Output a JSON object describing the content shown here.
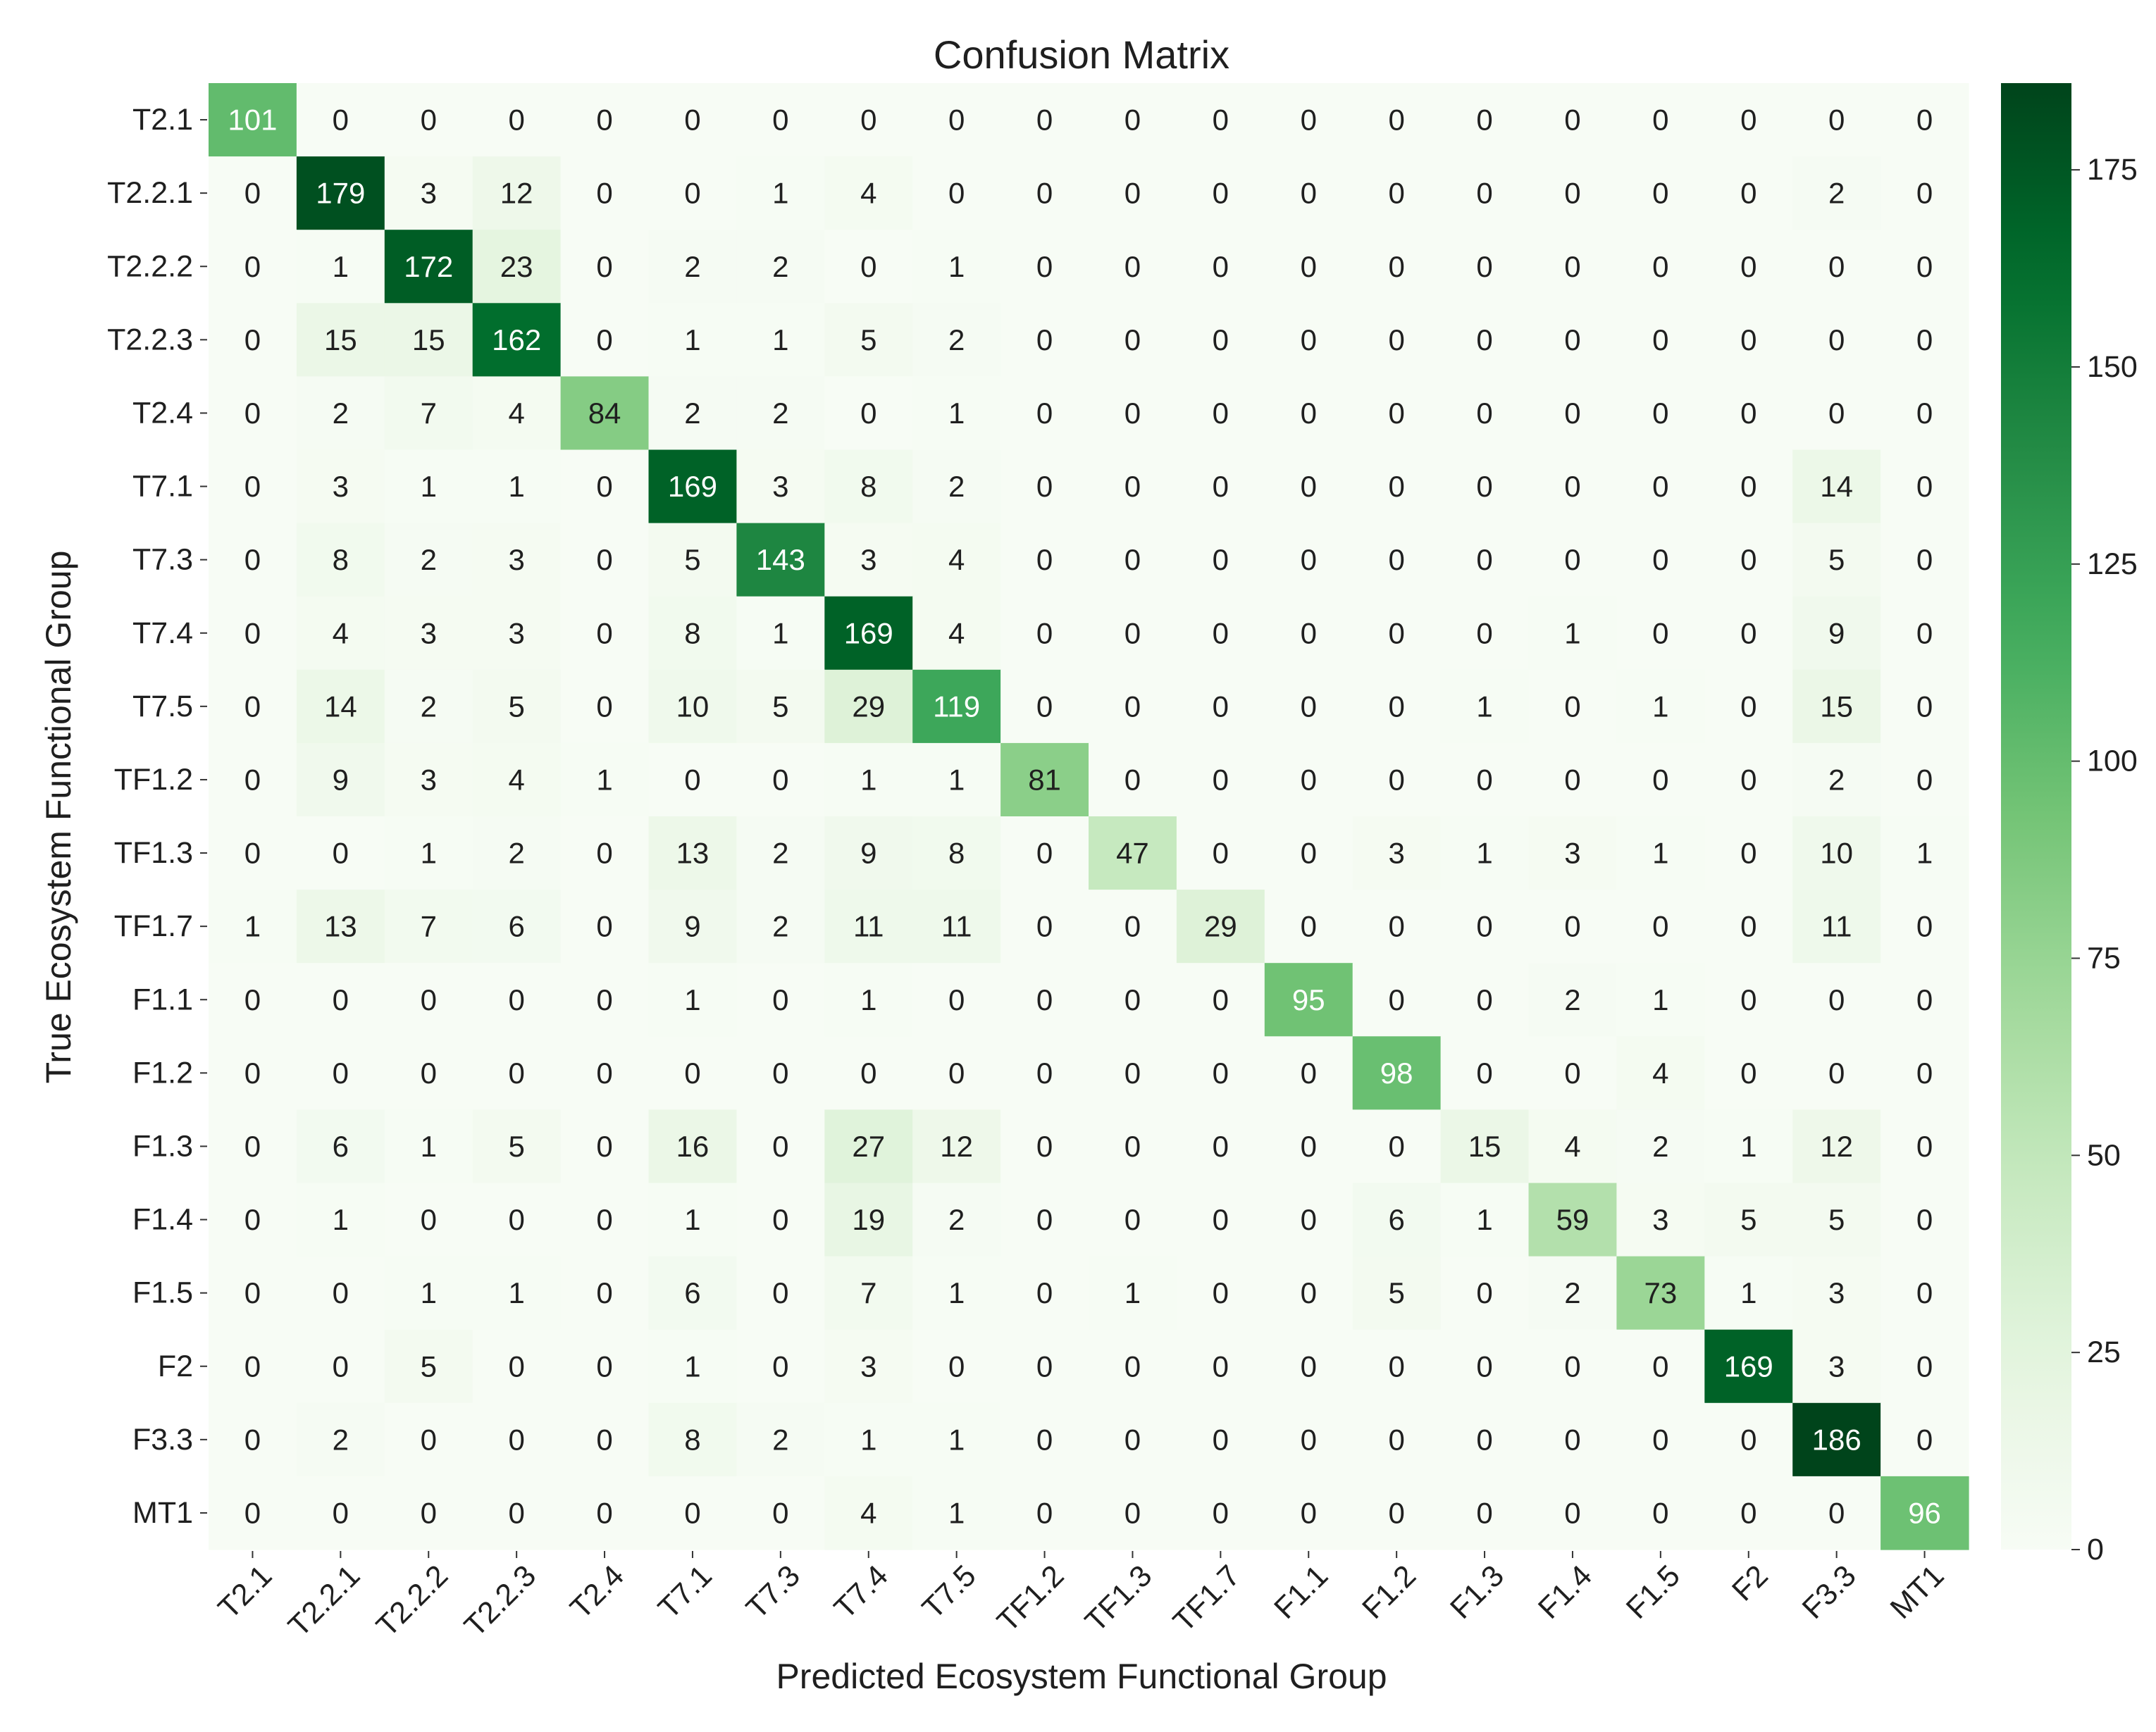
{
  "chart_data": {
    "type": "heatmap",
    "title": "Confusion Matrix",
    "xlabel": "Predicted Ecosystem Functional Group",
    "ylabel": "True Ecosystem Functional Group",
    "x_categories": [
      "T2.1",
      "T2.2.1",
      "T2.2.2",
      "T2.2.3",
      "T2.4",
      "T7.1",
      "T7.3",
      "T7.4",
      "T7.5",
      "TF1.2",
      "TF1.3",
      "TF1.7",
      "F1.1",
      "F1.2",
      "F1.3",
      "F1.4",
      "F1.5",
      "F2",
      "F3.3",
      "MT1"
    ],
    "y_categories": [
      "T2.1",
      "T2.2.1",
      "T2.2.2",
      "T2.2.3",
      "T2.4",
      "T7.1",
      "T7.3",
      "T7.4",
      "T7.5",
      "TF1.2",
      "TF1.3",
      "TF1.7",
      "F1.1",
      "F1.2",
      "F1.3",
      "F1.4",
      "F1.5",
      "F2",
      "F3.3",
      "MT1"
    ],
    "matrix": [
      [
        101,
        0,
        0,
        0,
        0,
        0,
        0,
        0,
        0,
        0,
        0,
        0,
        0,
        0,
        0,
        0,
        0,
        0,
        0,
        0
      ],
      [
        0,
        179,
        3,
        12,
        0,
        0,
        1,
        4,
        0,
        0,
        0,
        0,
        0,
        0,
        0,
        0,
        0,
        0,
        2,
        0
      ],
      [
        0,
        1,
        172,
        23,
        0,
        2,
        2,
        0,
        1,
        0,
        0,
        0,
        0,
        0,
        0,
        0,
        0,
        0,
        0,
        0
      ],
      [
        0,
        15,
        15,
        162,
        0,
        1,
        1,
        5,
        2,
        0,
        0,
        0,
        0,
        0,
        0,
        0,
        0,
        0,
        0,
        0
      ],
      [
        0,
        2,
        7,
        4,
        84,
        2,
        2,
        0,
        1,
        0,
        0,
        0,
        0,
        0,
        0,
        0,
        0,
        0,
        0,
        0
      ],
      [
        0,
        3,
        1,
        1,
        0,
        169,
        3,
        8,
        2,
        0,
        0,
        0,
        0,
        0,
        0,
        0,
        0,
        0,
        14,
        0
      ],
      [
        0,
        8,
        2,
        3,
        0,
        5,
        143,
        3,
        4,
        0,
        0,
        0,
        0,
        0,
        0,
        0,
        0,
        0,
        5,
        0
      ],
      [
        0,
        4,
        3,
        3,
        0,
        8,
        1,
        169,
        4,
        0,
        0,
        0,
        0,
        0,
        0,
        1,
        0,
        0,
        9,
        0
      ],
      [
        0,
        14,
        2,
        5,
        0,
        10,
        5,
        29,
        119,
        0,
        0,
        0,
        0,
        0,
        1,
        0,
        1,
        0,
        15,
        0
      ],
      [
        0,
        9,
        3,
        4,
        1,
        0,
        0,
        1,
        1,
        81,
        0,
        0,
        0,
        0,
        0,
        0,
        0,
        0,
        2,
        0
      ],
      [
        0,
        0,
        1,
        2,
        0,
        13,
        2,
        9,
        8,
        0,
        47,
        0,
        0,
        3,
        1,
        3,
        1,
        0,
        10,
        1
      ],
      [
        1,
        13,
        7,
        6,
        0,
        9,
        2,
        11,
        11,
        0,
        0,
        29,
        0,
        0,
        0,
        0,
        0,
        0,
        11,
        0
      ],
      [
        0,
        0,
        0,
        0,
        0,
        1,
        0,
        1,
        0,
        0,
        0,
        0,
        95,
        0,
        0,
        2,
        1,
        0,
        0,
        0
      ],
      [
        0,
        0,
        0,
        0,
        0,
        0,
        0,
        0,
        0,
        0,
        0,
        0,
        0,
        98,
        0,
        0,
        4,
        0,
        0,
        0
      ],
      [
        0,
        6,
        1,
        5,
        0,
        16,
        0,
        27,
        12,
        0,
        0,
        0,
        0,
        0,
        15,
        4,
        2,
        1,
        12,
        0
      ],
      [
        0,
        1,
        0,
        0,
        0,
        1,
        0,
        19,
        2,
        0,
        0,
        0,
        0,
        6,
        1,
        59,
        3,
        5,
        5,
        0
      ],
      [
        0,
        0,
        1,
        1,
        0,
        6,
        0,
        7,
        1,
        0,
        1,
        0,
        0,
        5,
        0,
        2,
        73,
        1,
        3,
        0
      ],
      [
        0,
        0,
        5,
        0,
        0,
        1,
        0,
        3,
        0,
        0,
        0,
        0,
        0,
        0,
        0,
        0,
        0,
        169,
        3,
        0
      ],
      [
        0,
        2,
        0,
        0,
        0,
        8,
        2,
        1,
        1,
        0,
        0,
        0,
        0,
        0,
        0,
        0,
        0,
        0,
        186,
        0
      ],
      [
        0,
        0,
        0,
        0,
        0,
        0,
        0,
        4,
        1,
        0,
        0,
        0,
        0,
        0,
        0,
        0,
        0,
        0,
        0,
        96
      ]
    ],
    "colorbar": {
      "colormap": "Greens",
      "range": [
        0,
        186
      ],
      "ticks": [
        0,
        25,
        50,
        75,
        100,
        125,
        150,
        175
      ]
    }
  }
}
